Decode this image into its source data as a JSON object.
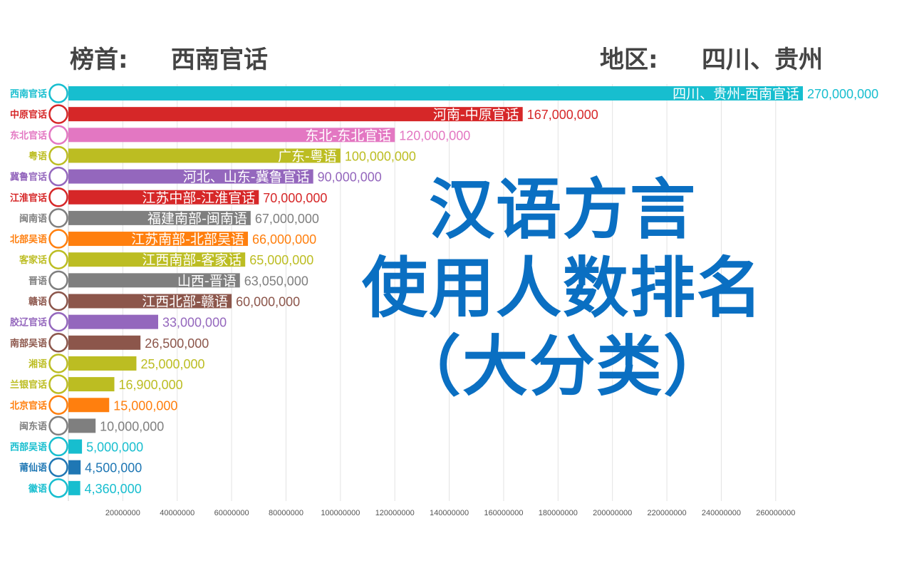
{
  "header": {
    "leader_label": "榜首:",
    "leader_value": "西南官话",
    "region_label": "地区:",
    "region_value": "四川、贵州"
  },
  "overlay_title": {
    "line1": "汉语方言",
    "line2": "使用人数排名",
    "line3": "（大分类）"
  },
  "chart_data": {
    "type": "bar",
    "orientation": "horizontal",
    "categories": [
      "西南官话",
      "中原官话",
      "东北官话",
      "粤语",
      "冀鲁官话",
      "江淮官话",
      "闽南语",
      "北部吴语",
      "客家话",
      "晋语",
      "赣语",
      "胶辽官话",
      "南部吴语",
      "湘语",
      "兰银官话",
      "北京官话",
      "闽东语",
      "西部吴语",
      "莆仙语",
      "徽语"
    ],
    "values": [
      270000000,
      167000000,
      120000000,
      100000000,
      90000000,
      70000000,
      67000000,
      66000000,
      65000000,
      63050000,
      60000000,
      33000000,
      26500000,
      25000000,
      16900000,
      15000000,
      10000000,
      5000000,
      4500000,
      4360000
    ],
    "value_labels": [
      "270,000,000",
      "167,000,000",
      "120,000,000",
      "100,000,000",
      "90,000,000",
      "70,000,000",
      "67,000,000",
      "66,000,000",
      "65,000,000",
      "63,050,000",
      "60,000,000",
      "33,000,000",
      "26,500,000",
      "25,000,000",
      "16,900,000",
      "15,000,000",
      "10,000,000",
      "5,000,000",
      "4,500,000",
      "4,360,000"
    ],
    "bar_labels": [
      "四川、贵州-西南官话",
      "河南-中原官话",
      "东北-东北官话",
      "广东-粤语",
      "河北、山东-冀鲁官话",
      "江苏中部-江淮官话",
      "福建南部-闽南语",
      "江苏南部-北部吴语",
      "江西南部-客家话",
      "山西-晋语",
      "江西北部-赣语",
      "",
      "",
      "",
      "",
      "",
      "",
      "",
      "",
      ""
    ],
    "colors": [
      "#17becf",
      "#d62728",
      "#e377c2",
      "#bcbd22",
      "#9467bd",
      "#d62728",
      "#7f7f7f",
      "#ff7f0e",
      "#bcbd22",
      "#7f7f7f",
      "#8c564b",
      "#9467bd",
      "#8c564b",
      "#bcbd22",
      "#bcbd22",
      "#ff7f0e",
      "#7f7f7f",
      "#17becf",
      "#1f77b4",
      "#17becf"
    ],
    "x_ticks": [
      20000000,
      40000000,
      60000000,
      80000000,
      100000000,
      120000000,
      140000000,
      160000000,
      180000000,
      200000000,
      220000000,
      240000000,
      260000000
    ],
    "x_tick_labels": [
      "20000000",
      "40000000",
      "60000000",
      "80000000",
      "100000000",
      "120000000",
      "140000000",
      "160000000",
      "180000000",
      "200000000",
      "220000000",
      "240000000",
      "260000000"
    ],
    "xlim": [
      0,
      270000000
    ],
    "grid": true
  }
}
